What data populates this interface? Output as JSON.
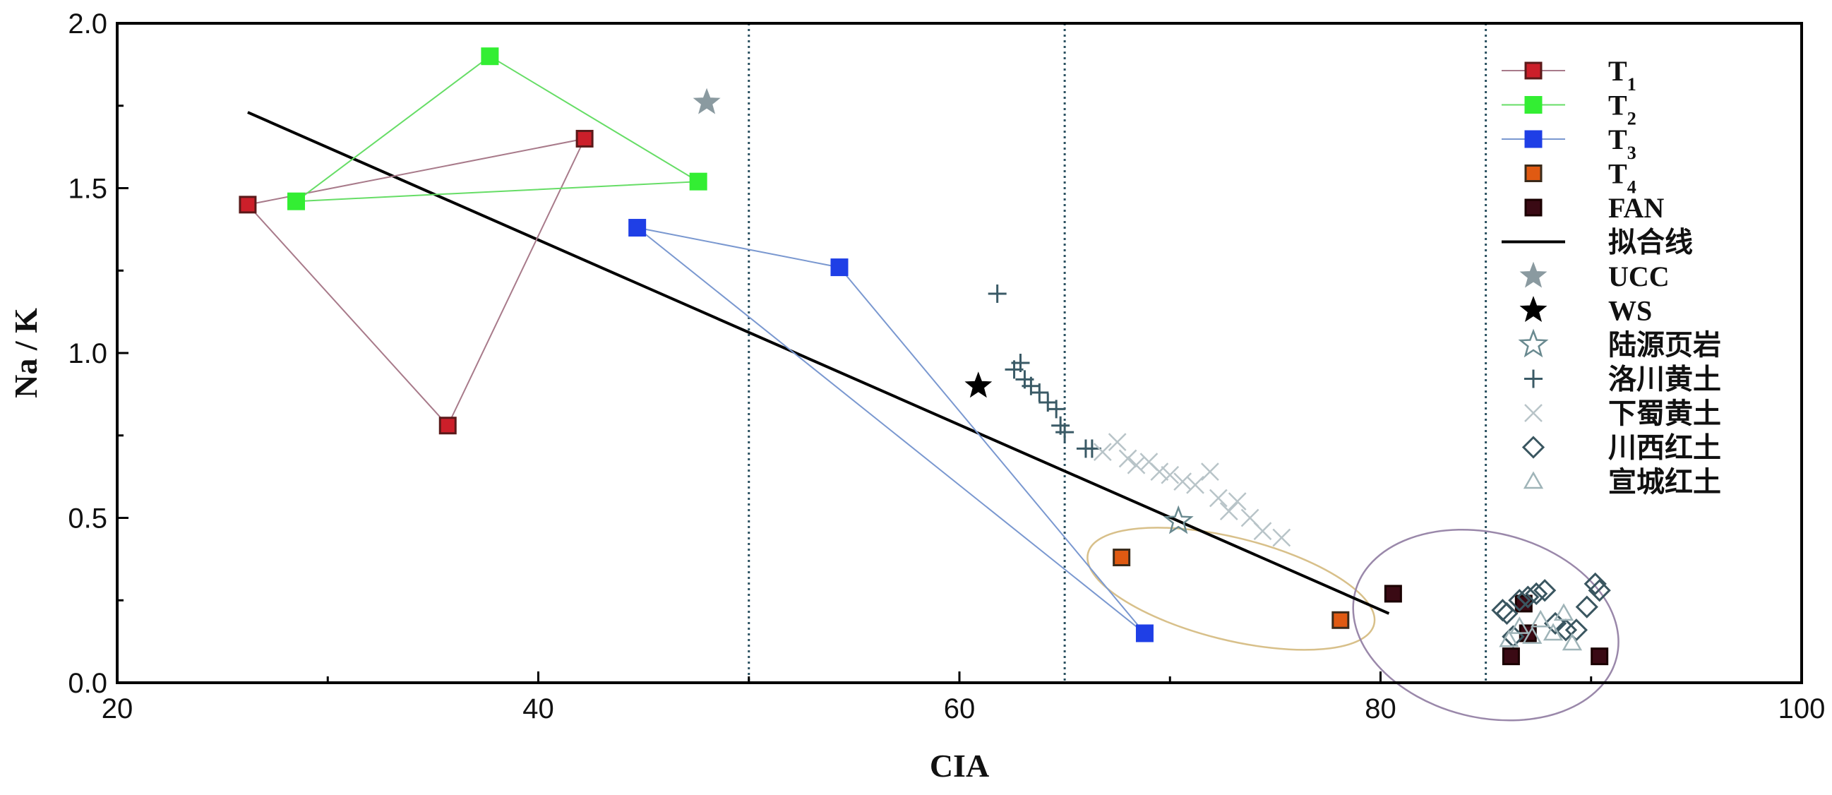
{
  "chart_data": {
    "type": "scatter",
    "xlabel": "CIA",
    "ylabel": "Na / K",
    "xlim": [
      20,
      100
    ],
    "ylim": [
      0,
      2.0
    ],
    "x_ticks": [
      "20",
      "40",
      "60",
      "80",
      "100"
    ],
    "y_ticks": [
      "0.0",
      "0.5",
      "1.0",
      "1.5",
      "2.0"
    ],
    "vertical_reference_lines": [
      50,
      65,
      85
    ],
    "legend_position": "top-right",
    "series": [
      {
        "name": "T",
        "subscript": "1",
        "marker": "square",
        "color": "#cc1f2a",
        "edge": "#5a1a1a",
        "line_color": "#a87a8a",
        "connected": true,
        "points": [
          [
            26.2,
            1.45
          ],
          [
            35.7,
            0.78
          ],
          [
            42.2,
            1.65
          ],
          [
            26.2,
            1.45
          ]
        ]
      },
      {
        "name": "T",
        "subscript": "2",
        "marker": "square",
        "color": "#33ee33",
        "edge": "#33ee33",
        "line_color": "#66dd66",
        "connected": true,
        "points": [
          [
            28.5,
            1.46
          ],
          [
            37.7,
            1.9
          ],
          [
            47.6,
            1.52
          ],
          [
            28.5,
            1.46
          ]
        ]
      },
      {
        "name": "T",
        "subscript": "3",
        "marker": "square",
        "color": "#1f3fe6",
        "edge": "#1f3fe6",
        "line_color": "#7a98d0",
        "connected": true,
        "points": [
          [
            44.7,
            1.38
          ],
          [
            54.3,
            1.26
          ],
          [
            68.8,
            0.15
          ],
          [
            44.7,
            1.38
          ]
        ]
      },
      {
        "name": "T",
        "subscript": "4",
        "marker": "square",
        "color": "#e05a12",
        "edge": "#3a2a1a",
        "connected": false,
        "points": [
          [
            67.7,
            0.38
          ],
          [
            78.1,
            0.19
          ]
        ]
      },
      {
        "name": "FAN",
        "marker": "square",
        "color": "#3a0a14",
        "edge": "#1a0000",
        "connected": false,
        "points": [
          [
            80.6,
            0.27
          ],
          [
            86.2,
            0.08
          ],
          [
            86.8,
            0.24
          ],
          [
            87.0,
            0.15
          ],
          [
            90.4,
            0.08
          ]
        ]
      },
      {
        "name": "拟合线",
        "type": "line",
        "color": "#000000",
        "points": [
          [
            26.2,
            1.73
          ],
          [
            80.4,
            0.21
          ]
        ]
      },
      {
        "name": "UCC",
        "marker": "star",
        "color": "#8a9aa0",
        "connected": false,
        "points": [
          [
            48.0,
            1.76
          ]
        ]
      },
      {
        "name": "WS",
        "marker": "star",
        "color": "#000000",
        "connected": false,
        "points": [
          [
            60.9,
            0.9
          ]
        ]
      },
      {
        "name": "陆源页岩",
        "marker": "star-open",
        "color": "#6a8a90",
        "connected": false,
        "points": [
          [
            70.4,
            0.49
          ]
        ]
      },
      {
        "name": "洛川黄土",
        "marker": "plus",
        "color": "#3a5a66",
        "connected": false,
        "points": [
          [
            61.8,
            1.18
          ],
          [
            62.6,
            0.95
          ],
          [
            62.9,
            0.97
          ],
          [
            63.1,
            0.92
          ],
          [
            63.4,
            0.9
          ],
          [
            63.8,
            0.88
          ],
          [
            64.2,
            0.85
          ],
          [
            64.6,
            0.83
          ],
          [
            64.8,
            0.78
          ],
          [
            65.0,
            0.76
          ],
          [
            66.0,
            0.71
          ],
          [
            66.3,
            0.71
          ]
        ]
      },
      {
        "name": "下蜀黄土",
        "marker": "x",
        "color": "#b8c4c8",
        "connected": false,
        "points": [
          [
            66.8,
            0.7
          ],
          [
            67.5,
            0.73
          ],
          [
            68.0,
            0.68
          ],
          [
            68.4,
            0.66
          ],
          [
            69.0,
            0.67
          ],
          [
            69.5,
            0.64
          ],
          [
            70.0,
            0.63
          ],
          [
            70.6,
            0.61
          ],
          [
            71.2,
            0.6
          ],
          [
            71.9,
            0.64
          ],
          [
            72.3,
            0.56
          ],
          [
            72.8,
            0.52
          ],
          [
            73.2,
            0.55
          ],
          [
            73.8,
            0.5
          ],
          [
            74.4,
            0.46
          ],
          [
            75.3,
            0.44
          ]
        ]
      },
      {
        "name": "川西红土",
        "marker": "diamond-open",
        "color": "#3a5660",
        "connected": false,
        "points": [
          [
            85.8,
            0.22
          ],
          [
            86.0,
            0.21
          ],
          [
            86.6,
            0.25
          ],
          [
            87.0,
            0.26
          ],
          [
            87.4,
            0.27
          ],
          [
            87.8,
            0.28
          ],
          [
            88.3,
            0.18
          ],
          [
            88.8,
            0.16
          ],
          [
            89.3,
            0.16
          ],
          [
            89.8,
            0.23
          ],
          [
            90.2,
            0.3
          ],
          [
            90.4,
            0.28
          ],
          [
            86.3,
            0.14
          ]
        ]
      },
      {
        "name": "宣城红土",
        "marker": "triangle-open",
        "color": "#9fb4b8",
        "connected": false,
        "points": [
          [
            86.1,
            0.13
          ],
          [
            86.6,
            0.17
          ],
          [
            87.2,
            0.14
          ],
          [
            87.6,
            0.19
          ],
          [
            88.2,
            0.15
          ],
          [
            88.7,
            0.21
          ],
          [
            89.1,
            0.12
          ]
        ]
      }
    ],
    "ellipses": [
      {
        "center": [
          72.9,
          0.285
        ],
        "rx_units": 7.0,
        "ry_units": 0.155,
        "rotation_deg": 14,
        "color": "#d8c08a"
      },
      {
        "center": [
          85.0,
          0.175
        ],
        "rx_units": 6.4,
        "ry_units": 0.28,
        "rotation_deg": 14,
        "color": "#9a88aa"
      }
    ]
  }
}
